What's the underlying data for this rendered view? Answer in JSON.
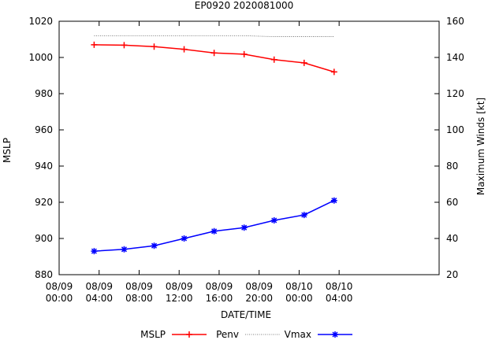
{
  "chart_data": {
    "type": "line",
    "title": "EP0920 2020081000",
    "xlabel": "DATE/TIME",
    "ylabel_left": "MSLP",
    "ylabel_right": "Maximum Winds [kt]",
    "x_hours_range": [
      0,
      76
    ],
    "x_ticks": [
      {
        "hours": 0,
        "line1": "08/09",
        "line2": "00:00"
      },
      {
        "hours": 8,
        "line1": "08/09",
        "line2": "04:00"
      },
      {
        "hours": 16,
        "line1": "08/09",
        "line2": "08:00"
      },
      {
        "hours": 24,
        "line1": "08/09",
        "line2": "12:00"
      },
      {
        "hours": 32,
        "line1": "08/09",
        "line2": "16:00"
      },
      {
        "hours": 40,
        "line1": "08/09",
        "line2": "20:00"
      },
      {
        "hours": 48,
        "line1": "08/10",
        "line2": "00:00"
      },
      {
        "hours": 56,
        "line1": "08/10",
        "line2": "04:00"
      }
    ],
    "y_left": {
      "range": [
        880,
        1020
      ],
      "ticks": [
        880,
        900,
        920,
        940,
        960,
        980,
        1000,
        1020
      ]
    },
    "y_right": {
      "range": [
        20,
        160
      ],
      "ticks": [
        20,
        40,
        60,
        80,
        100,
        120,
        140,
        160
      ]
    },
    "series": [
      {
        "name": "MSLP",
        "axis": "left",
        "color": "#ff0000",
        "marker": "plus",
        "x_hours": [],
        "values": []
      },
      {
        "name": "Penv",
        "axis": "left",
        "color": "#555555",
        "marker": "none",
        "style": "dotted",
        "x_hours": [
          7,
          13,
          19,
          25,
          31,
          37,
          43,
          49,
          55
        ],
        "values": [
          1012,
          1012,
          1012,
          1012,
          1012,
          1012,
          1011.5,
          1011.5,
          1011.5
        ]
      },
      {
        "name": "Vmax",
        "axis": "right",
        "color": "#0000ff",
        "marker": "star",
        "x_hours": [
          7,
          13,
          19,
          25,
          31,
          37,
          43,
          49,
          55
        ],
        "values": [
          33,
          34,
          36,
          40,
          44,
          46,
          50,
          53,
          61
        ]
      }
    ],
    "red_line_values": {
      "x_hours": [
        7,
        13,
        19,
        25,
        31,
        37,
        43,
        49,
        55
      ],
      "values": [
        1007,
        1006.8,
        1006,
        1004.5,
        1002.5,
        1001.8,
        998.8,
        997,
        992
      ]
    },
    "legend_position": "bottom"
  }
}
